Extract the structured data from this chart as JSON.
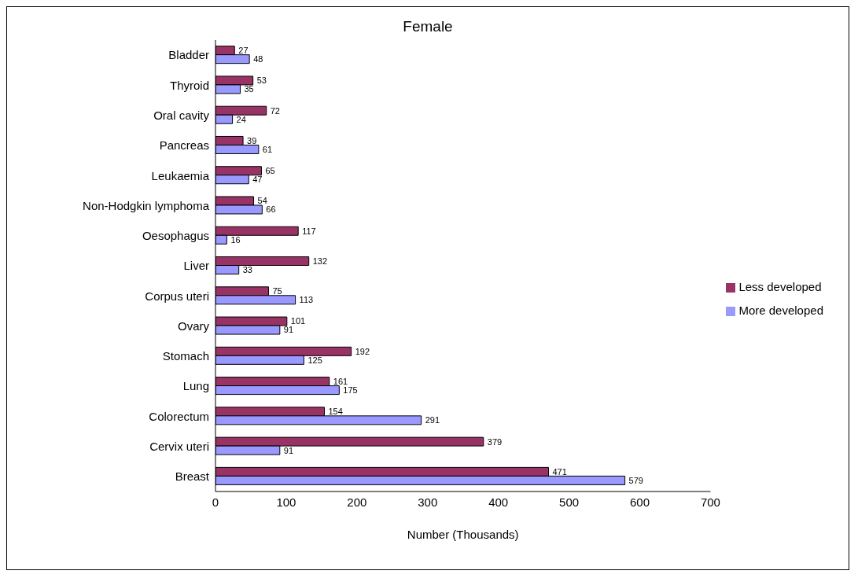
{
  "chart_data": {
    "type": "bar",
    "orientation": "horizontal",
    "title": "Female",
    "xlabel": "Number (Thousands)",
    "categories": [
      "Bladder",
      "Thyroid",
      "Oral cavity",
      "Pancreas",
      "Leukaemia",
      "Non-Hodgkin lymphoma",
      "Oesophagus",
      "Liver",
      "Corpus uteri",
      "Ovary",
      "Stomach",
      "Lung",
      "Colorectum",
      "Cervix uteri",
      "Breast"
    ],
    "series": [
      {
        "name": "Less developed",
        "color": "#993366",
        "values": [
          27,
          53,
          72,
          39,
          65,
          54,
          117,
          132,
          75,
          101,
          192,
          161,
          154,
          379,
          471
        ]
      },
      {
        "name": "More developed",
        "color": "#9999ff",
        "values": [
          48,
          35,
          24,
          61,
          47,
          66,
          16,
          33,
          113,
          91,
          125,
          175,
          291,
          91,
          579
        ]
      }
    ],
    "xlim": [
      0,
      700
    ],
    "xticks": [
      0,
      100,
      200,
      300,
      400,
      500,
      600,
      700
    ],
    "data_labels": true,
    "legend": "right"
  }
}
